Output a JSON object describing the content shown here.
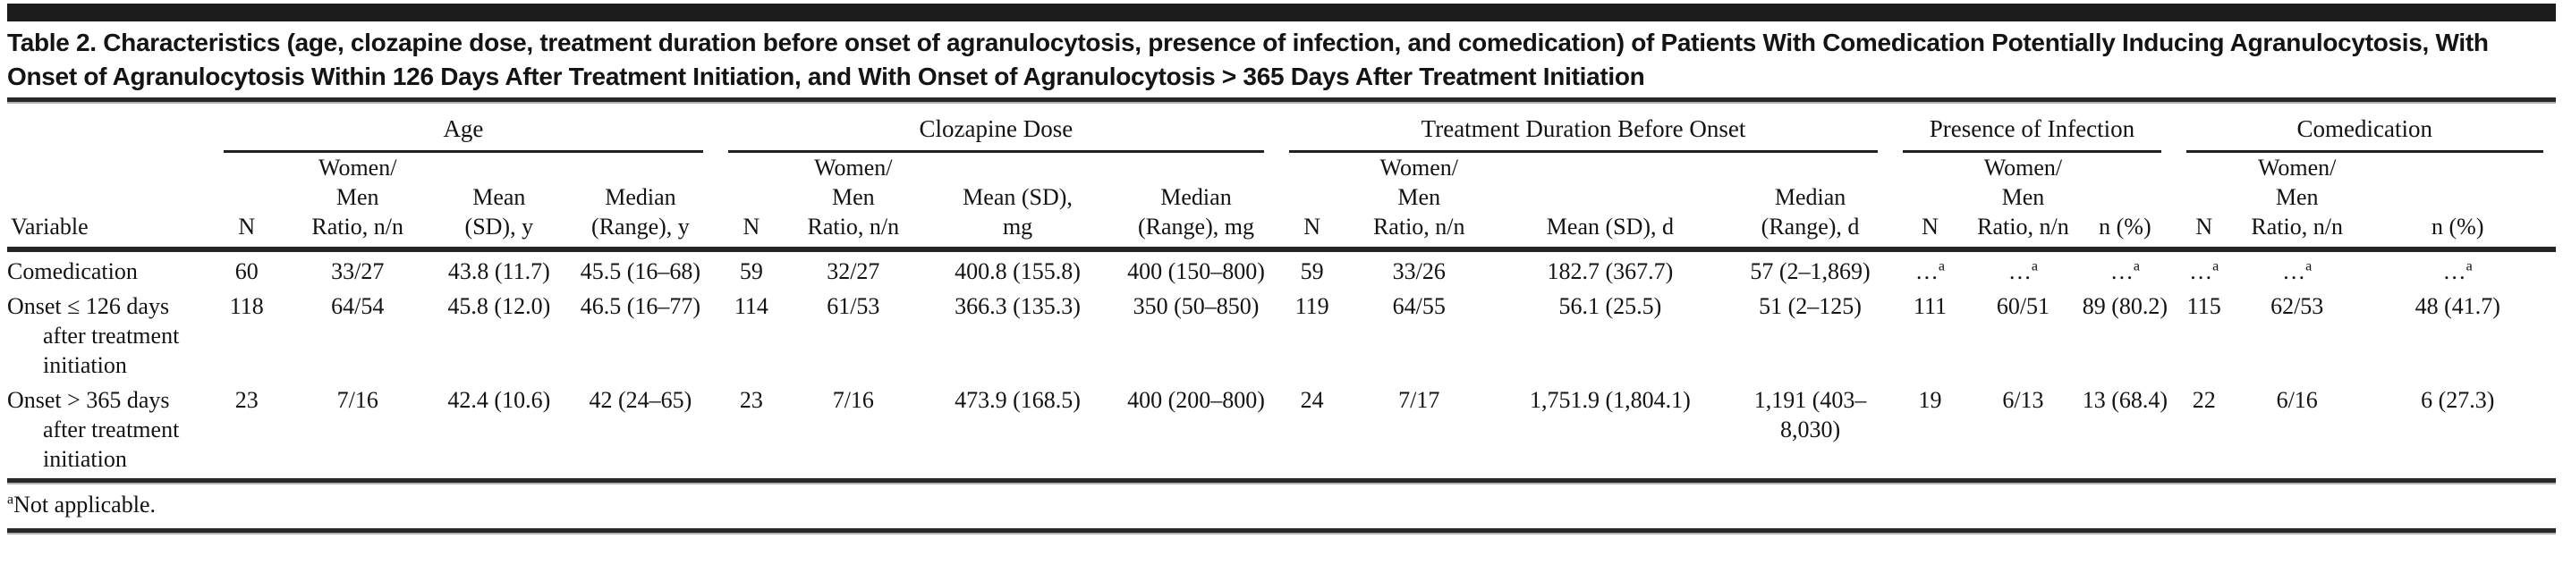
{
  "title": "Table 2. Characteristics (age, clozapine dose, treatment duration before onset of agranulocytosis, presence of infection, and comedication) of Patients With Comedication Potentially Inducing Agranulocytosis, With Onset of Agranulocytosis Within 126 Days After Treatment Initiation, and With Onset of Agranulocytosis > 365 Days After Treatment Initiation",
  "colors": {
    "top_bar": "#1c1c1c",
    "rule": "#282828",
    "text": "#131313"
  },
  "table": {
    "groups": [
      {
        "label": "",
        "colspan": 1
      },
      {
        "label": "Age",
        "colspan": 4
      },
      {
        "label": "Clozapine Dose",
        "colspan": 4
      },
      {
        "label": "Treatment Duration Before Onset",
        "colspan": 4
      },
      {
        "label": "Presence of Infection",
        "colspan": 3
      },
      {
        "label": "Comedication",
        "colspan": 3
      }
    ],
    "columns": [
      {
        "lines": [
          "Variable"
        ],
        "align": "left",
        "width": "8.0%"
      },
      {
        "lines": [
          "N"
        ],
        "width": "2.8%"
      },
      {
        "lines": [
          "Women/",
          "Men",
          "Ratio, n/n"
        ],
        "width": "5.9%"
      },
      {
        "lines": [
          "Mean",
          "(SD), y"
        ],
        "width": "5.2%"
      },
      {
        "lines": [
          "Median",
          "(Range), y"
        ],
        "width": "5.9%"
      },
      {
        "lines": [
          "N"
        ],
        "width": "2.8%"
      },
      {
        "lines": [
          "Women/",
          "Men",
          "Ratio, n/n"
        ],
        "width": "5.2%"
      },
      {
        "lines": [
          "Mean (SD),",
          "mg"
        ],
        "width": "7.7%"
      },
      {
        "lines": [
          "Median",
          "(Range), mg"
        ],
        "width": "6.3%"
      },
      {
        "lines": [
          "N"
        ],
        "width": "2.8%"
      },
      {
        "lines": [
          "Women/",
          "Men",
          "Ratio, n/n"
        ],
        "width": "5.6%"
      },
      {
        "lines": [
          "Mean (SD), d"
        ],
        "width": "9.4%"
      },
      {
        "lines": [
          "Median (Range), d"
        ],
        "width": "6.3%"
      },
      {
        "lines": [
          "N"
        ],
        "width": "3.1%"
      },
      {
        "lines": [
          "Women/",
          "Men",
          "Ratio, n/n"
        ],
        "width": "4.2%"
      },
      {
        "lines": [
          "n (%)"
        ],
        "width": "3.8%"
      },
      {
        "lines": [
          "N"
        ],
        "width": "2.4%"
      },
      {
        "lines": [
          "Women/",
          "Men",
          "Ratio, n/n"
        ],
        "width": "4.9%"
      },
      {
        "lines": [
          "n (%)"
        ],
        "width": "7.7%"
      }
    ],
    "rows": [
      {
        "label": "Comedication",
        "cells": [
          "60",
          "33/27",
          "43.8 (11.7)",
          "45.5 (16–68)",
          "59",
          "32/27",
          "400.8 (155.8)",
          "400 (150–800)",
          "59",
          "33/26",
          "182.7 (367.7)",
          "57 (2–1,869)",
          "…^a",
          "…^a",
          "…^a",
          "…^a",
          "…^a",
          "…^a"
        ]
      },
      {
        "label": "Onset ≤ 126 days after treatment initiation",
        "cells": [
          "118",
          "64/54",
          "45.8 (12.0)",
          "46.5 (16–77)",
          "114",
          "61/53",
          "366.3 (135.3)",
          "350 (50–850)",
          "119",
          "64/55",
          "56.1 (25.5)",
          "51 (2–125)",
          "111",
          "60/51",
          "89 (80.2)",
          "115",
          "62/53",
          "48 (41.7)"
        ]
      },
      {
        "label": "Onset > 365 days after treatment initiation",
        "cells": [
          "23",
          "7/16",
          "42.4 (10.6)",
          "42 (24–65)",
          "23",
          "7/16",
          "473.9 (168.5)",
          "400 (200–800)",
          "24",
          "7/17",
          "1,751.9 (1,804.1)",
          "1,191 (403–8,030)",
          "19",
          "6/13",
          "13 (68.4)",
          "22",
          "6/16",
          "6 (27.3)"
        ]
      }
    ],
    "footnote": {
      "marker": "a",
      "text": "Not applicable."
    }
  }
}
